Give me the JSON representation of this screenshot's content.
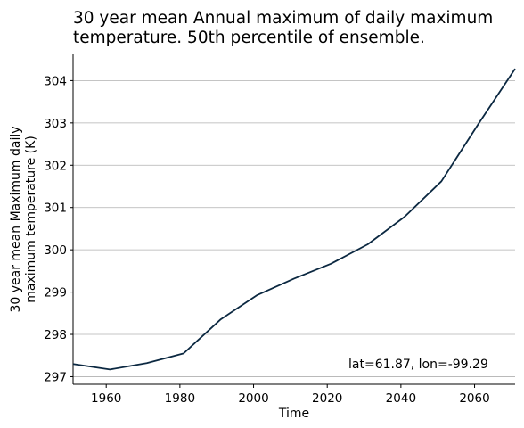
{
  "chart_data": {
    "type": "line",
    "title_line1": "30 year mean Annual maximum of daily maximum",
    "title_line2": "temperature. 50th percentile of ensemble.",
    "xlabel": "Time",
    "ylabel_line1": "30 year mean Maximum daily",
    "ylabel_line2": "maximum temperature (K)",
    "xlim": [
      1951,
      2071
    ],
    "ylim": [
      296.82,
      304.62
    ],
    "xticks": [
      1960,
      1980,
      2000,
      2020,
      2040,
      2060
    ],
    "yticks": [
      297,
      298,
      299,
      300,
      301,
      302,
      303,
      304
    ],
    "grid": "horizontal",
    "annotation": "lat=61.87, lon=-99.29",
    "line_color": "#0b2841",
    "series": [
      {
        "x": [
          1951,
          1961,
          1971,
          1981,
          1991,
          2001,
          2011,
          2021,
          2031,
          2041,
          2051,
          2061,
          2071
        ],
        "y": [
          297.3,
          297.17,
          297.32,
          297.55,
          298.35,
          298.93,
          299.32,
          299.67,
          300.13,
          300.78,
          301.62,
          302.97,
          304.28
        ]
      }
    ]
  }
}
